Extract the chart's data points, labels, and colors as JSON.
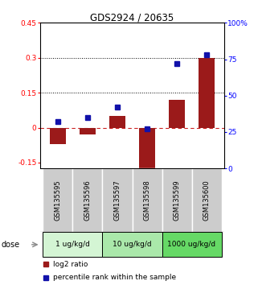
{
  "title": "GDS2924 / 20635",
  "samples": [
    "GSM135595",
    "GSM135596",
    "GSM135597",
    "GSM135598",
    "GSM135599",
    "GSM135600"
  ],
  "log2_ratio": [
    -0.07,
    -0.03,
    0.05,
    -0.18,
    0.12,
    0.3
  ],
  "percentile_rank": [
    32,
    35,
    42,
    27,
    72,
    78
  ],
  "ylim_left": [
    -0.175,
    0.45
  ],
  "ylim_right": [
    0,
    100
  ],
  "yticks_left": [
    -0.15,
    0.0,
    0.15,
    0.3,
    0.45
  ],
  "yticks_right": [
    0,
    25,
    50,
    75,
    100
  ],
  "hlines_dotted": [
    0.15,
    0.3
  ],
  "hline_dashed": 0.0,
  "bar_color": "#9b1a1a",
  "dot_color": "#1111aa",
  "dose_groups": [
    {
      "label": "1 ug/kg/d",
      "samples": [
        0,
        1
      ],
      "color": "#d4f5d4"
    },
    {
      "label": "10 ug/kg/d",
      "samples": [
        2,
        3
      ],
      "color": "#aae8aa"
    },
    {
      "label": "1000 ug/kg/d",
      "samples": [
        4,
        5
      ],
      "color": "#66d966"
    }
  ],
  "dose_label": "dose",
  "legend_red": "log2 ratio",
  "legend_blue": "percentile rank within the sample",
  "sample_box_color": "#cccccc",
  "bar_width": 0.55
}
